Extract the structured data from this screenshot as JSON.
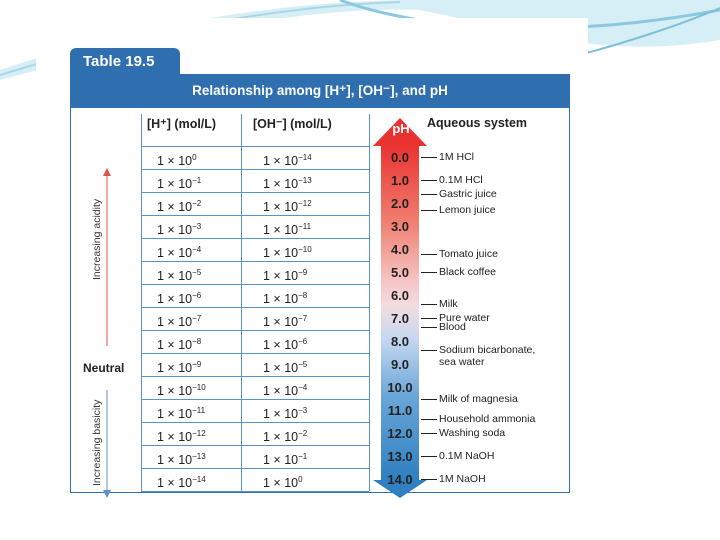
{
  "table_tab": "Table 19.5",
  "banner_title": "Relationship among [H⁺], [OH⁻], and pH",
  "headers": {
    "h": "[H⁺] (mol/L)",
    "oh": "[OH⁻] (mol/L)",
    "ph": "pH",
    "aqueous": "Aqueous system"
  },
  "side_labels": {
    "acidity": "Increasing acidity",
    "neutral": "Neutral",
    "basicity": "Increasing basicity"
  },
  "rows": [
    {
      "h_base": "1 × 10",
      "h_exp": "0",
      "oh_base": "1 × 10",
      "oh_exp": "−14",
      "ph": "0.0"
    },
    {
      "h_base": "1 × 10",
      "h_exp": "−1",
      "oh_base": "1 × 10",
      "oh_exp": "−13",
      "ph": "1.0"
    },
    {
      "h_base": "1 × 10",
      "h_exp": "−2",
      "oh_base": "1 × 10",
      "oh_exp": "−12",
      "ph": "2.0"
    },
    {
      "h_base": "1 × 10",
      "h_exp": "−3",
      "oh_base": "1 × 10",
      "oh_exp": "−11",
      "ph": "3.0"
    },
    {
      "h_base": "1 × 10",
      "h_exp": "−4",
      "oh_base": "1 × 10",
      "oh_exp": "−10",
      "ph": "4.0"
    },
    {
      "h_base": "1 × 10",
      "h_exp": "−5",
      "oh_base": "1 × 10",
      "oh_exp": "−9",
      "ph": "5.0"
    },
    {
      "h_base": "1 × 10",
      "h_exp": "−6",
      "oh_base": "1 × 10",
      "oh_exp": "−8",
      "ph": "6.0"
    },
    {
      "h_base": "1 × 10",
      "h_exp": "−7",
      "oh_base": "1 × 10",
      "oh_exp": "−7",
      "ph": "7.0"
    },
    {
      "h_base": "1 × 10",
      "h_exp": "−8",
      "oh_base": "1 × 10",
      "oh_exp": "−6",
      "ph": "8.0"
    },
    {
      "h_base": "1 × 10",
      "h_exp": "−9",
      "oh_base": "1 × 10",
      "oh_exp": "−5",
      "ph": "9.0"
    },
    {
      "h_base": "1 × 10",
      "h_exp": "−10",
      "oh_base": "1 × 10",
      "oh_exp": "−4",
      "ph": "10.0"
    },
    {
      "h_base": "1 × 10",
      "h_exp": "−11",
      "oh_base": "1 × 10",
      "oh_exp": "−3",
      "ph": "11.0"
    },
    {
      "h_base": "1 × 10",
      "h_exp": "−12",
      "oh_base": "1 × 10",
      "oh_exp": "−2",
      "ph": "12.0"
    },
    {
      "h_base": "1 × 10",
      "h_exp": "−13",
      "oh_base": "1 × 10",
      "oh_exp": "−1",
      "ph": "13.0"
    },
    {
      "h_base": "1 × 10",
      "h_exp": "−14",
      "oh_base": "1 × 10",
      "oh_exp": "0",
      "ph": "14.0"
    }
  ],
  "aqueous_systems": [
    {
      "label": "1M HCl",
      "ph": 0.0
    },
    {
      "label": "0.1M HCl",
      "ph": 1.0
    },
    {
      "label": "Gastric juice",
      "ph": 1.6
    },
    {
      "label": "Lemon juice",
      "ph": 2.3
    },
    {
      "label": "Tomato juice",
      "ph": 4.2
    },
    {
      "label": "Black coffee",
      "ph": 5.0
    },
    {
      "label": "Milk",
      "ph": 6.4
    },
    {
      "label": "Pure water",
      "ph": 7.0
    },
    {
      "label": "Blood",
      "ph": 7.4
    },
    {
      "label": "Sodium bicarbonate,\nsea water",
      "ph": 8.4
    },
    {
      "label": "Milk of magnesia",
      "ph": 10.5
    },
    {
      "label": "Household ammonia",
      "ph": 11.4
    },
    {
      "label": "Washing soda",
      "ph": 12.0
    },
    {
      "label": "0.1M NaOH",
      "ph": 13.0
    },
    {
      "label": "1M NaOH",
      "ph": 14.0
    }
  ],
  "colors": {
    "header_blue": "#2f6fb0",
    "grid_blue": "#5a93c9",
    "acid_red": "#e8322f",
    "base_blue": "#2f7fc1"
  }
}
